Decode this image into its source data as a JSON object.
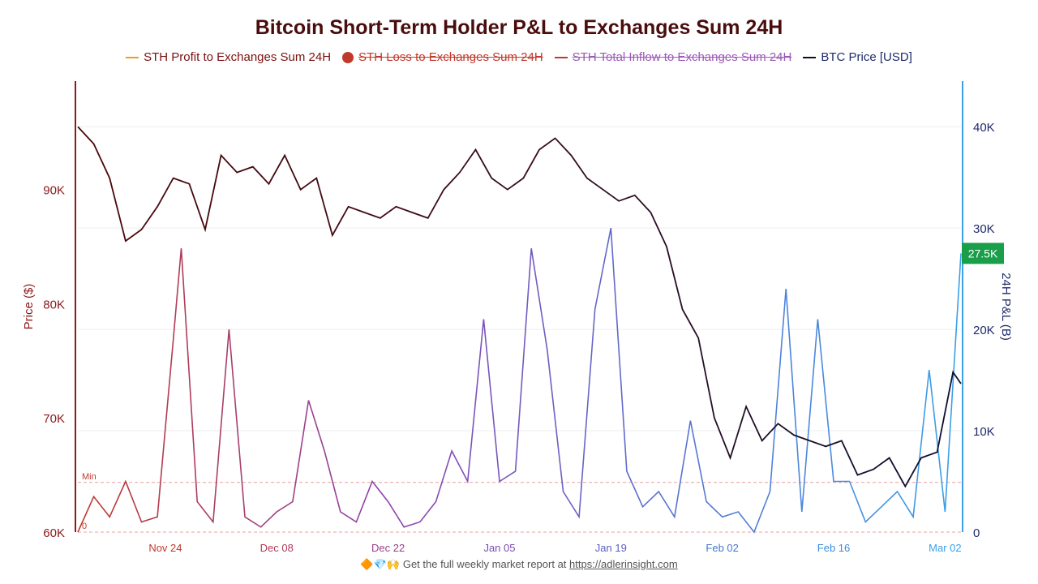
{
  "chart_data": {
    "type": "line",
    "title": "Bitcoin Short-Term Holder P&L to Exchanges Sum 24H",
    "x_ticks": [
      "Nov 24",
      "Dec 08",
      "Dec 22",
      "Jan 05",
      "Jan 19",
      "Feb 02",
      "Feb 16",
      "Mar 02"
    ],
    "left_axis": {
      "label": "Price ($)",
      "ticks": [
        "60K",
        "70K",
        "80K",
        "90K"
      ],
      "tick_values": [
        60000,
        70000,
        80000,
        90000
      ],
      "range": [
        60000,
        99500
      ]
    },
    "right_axis": {
      "label": "24H P&L (B)",
      "ticks": [
        "0",
        "10K",
        "20K",
        "30K",
        "40K"
      ],
      "tick_values": [
        0,
        10000,
        20000,
        30000,
        40000
      ],
      "range": [
        0,
        44500
      ]
    },
    "current_value_label": "27.5K",
    "min_label": "Min",
    "zero_label": "0",
    "min_value": 4900,
    "series": [
      {
        "name": "STH Profit to Exchanges Sum 24H",
        "axis": "right",
        "color": "#f39c12",
        "visible": true,
        "x": [
          "Nov 13",
          "Nov 15",
          "Nov 17",
          "Nov 19",
          "Nov 21",
          "Nov 23",
          "Nov 25",
          "Nov 26",
          "Nov 28",
          "Nov 30",
          "Dec 02",
          "Dec 04",
          "Dec 06",
          "Dec 08",
          "Dec 10",
          "Dec 12",
          "Dec 14",
          "Dec 16",
          "Dec 18",
          "Dec 20",
          "Dec 22",
          "Dec 24",
          "Dec 26",
          "Dec 28",
          "Dec 30",
          "Jan 01",
          "Jan 03",
          "Jan 05",
          "Jan 07",
          "Jan 09",
          "Jan 11",
          "Jan 13",
          "Jan 15",
          "Jan 17",
          "Jan 19",
          "Jan 21",
          "Jan 23",
          "Jan 25",
          "Jan 27",
          "Jan 29",
          "Jan 31",
          "Feb 02",
          "Feb 04",
          "Feb 06",
          "Feb 08",
          "Feb 10",
          "Feb 12",
          "Feb 14",
          "Feb 16",
          "Feb 18",
          "Feb 20",
          "Feb 22",
          "Feb 24",
          "Feb 26",
          "Feb 28",
          "Mar 02",
          "Mar 04"
        ],
        "values": [
          0,
          3500,
          1500,
          5000,
          1000,
          1500,
          19000,
          28000,
          3000,
          1000,
          20000,
          1500,
          500,
          2000,
          3000,
          13000,
          8000,
          2000,
          1000,
          5000,
          3000,
          500,
          1000,
          3000,
          8000,
          5000,
          21000,
          5000,
          6000,
          28000,
          18000,
          4000,
          1500,
          22000,
          30000,
          6000,
          2500,
          4000,
          1500,
          11000,
          3000,
          1500,
          2000,
          0,
          4000,
          24000,
          2000,
          21000,
          5000,
          5000,
          1000,
          2500,
          4000,
          1500,
          16000,
          2000,
          27500
        ]
      },
      {
        "name": "STH Loss to Exchanges Sum 24H",
        "axis": "right",
        "color": "#c0392b",
        "visible": false,
        "x": [],
        "values": []
      },
      {
        "name": "STH Total Inflow to  Exchanges Sum 24H",
        "axis": "right",
        "color": "#c0392b",
        "visible": false,
        "x": [],
        "values": []
      },
      {
        "name": "BTC Price [USD]",
        "axis": "left",
        "color": "#0d0d2b",
        "visible": true,
        "x": [
          "Nov 13",
          "Nov 15",
          "Nov 17",
          "Nov 19",
          "Nov 21",
          "Nov 23",
          "Nov 25",
          "Nov 27",
          "Nov 29",
          "Dec 01",
          "Dec 03",
          "Dec 05",
          "Dec 07",
          "Dec 09",
          "Dec 11",
          "Dec 13",
          "Dec 15",
          "Dec 17",
          "Dec 19",
          "Dec 21",
          "Dec 23",
          "Dec 25",
          "Dec 27",
          "Dec 29",
          "Dec 31",
          "Jan 02",
          "Jan 04",
          "Jan 06",
          "Jan 08",
          "Jan 10",
          "Jan 12",
          "Jan 14",
          "Jan 16",
          "Jan 18",
          "Jan 20",
          "Jan 22",
          "Jan 24",
          "Jan 26",
          "Jan 28",
          "Jan 30",
          "Feb 01",
          "Feb 03",
          "Feb 05",
          "Feb 07",
          "Feb 09",
          "Feb 11",
          "Feb 13",
          "Feb 15",
          "Feb 17",
          "Feb 19",
          "Feb 21",
          "Feb 23",
          "Feb 25",
          "Feb 27",
          "Mar 01",
          "Mar 03",
          "Mar 04"
        ],
        "values": [
          95500,
          94000,
          91000,
          85500,
          86500,
          88500,
          91000,
          90500,
          86500,
          93000,
          91500,
          92000,
          90500,
          93000,
          90000,
          91000,
          86000,
          88500,
          88000,
          87500,
          88500,
          88000,
          87500,
          90000,
          91500,
          93500,
          91000,
          90000,
          91000,
          93500,
          94500,
          93000,
          91000,
          90000,
          89000,
          89500,
          88000,
          85000,
          79500,
          77000,
          70000,
          66500,
          71000,
          68000,
          69500,
          68500,
          68000,
          67500,
          68000,
          65000,
          65500,
          66500,
          64000,
          66500,
          67000,
          74000,
          73000
        ]
      }
    ],
    "legend_position": "top-center",
    "grid": true
  },
  "footer": {
    "text": "Get the full weekly market report at ",
    "link_text": "https://adlerinsight.com",
    "emojis": "🔶💎🙌"
  }
}
